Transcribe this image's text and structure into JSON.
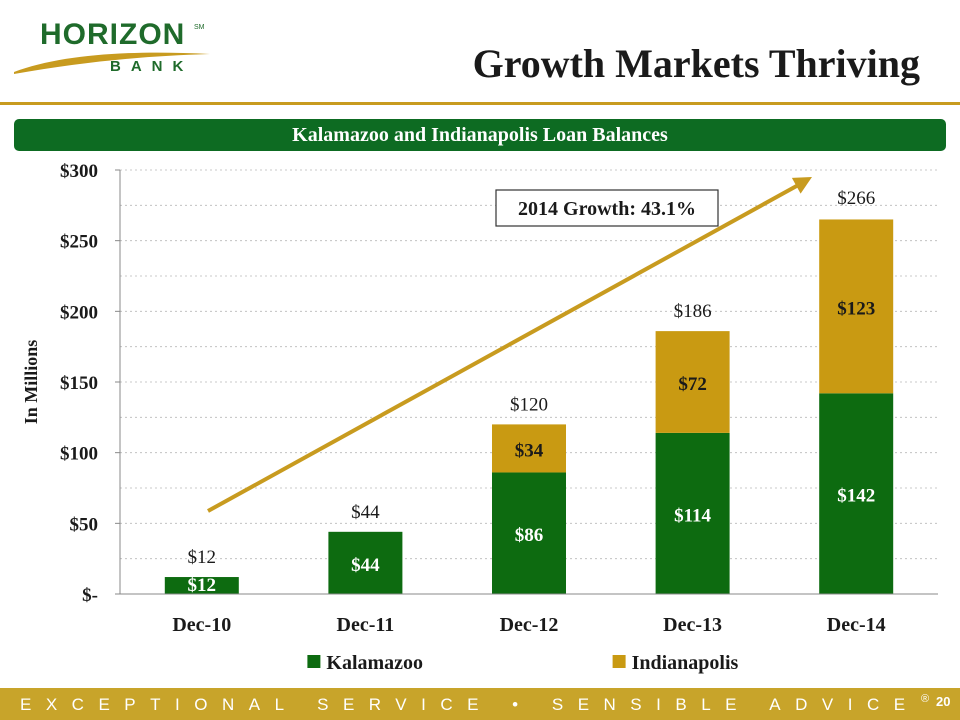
{
  "logo": {
    "name": "HORIZON",
    "sub": "BANK",
    "mark": "SM"
  },
  "slide": {
    "title": "Growth Markets Thriving",
    "banner": "Kalamazoo and Indianapolis Loan Balances"
  },
  "footer": {
    "tagline": "EXCEPTIONAL SERVICE • SENSIBLE ADVICE",
    "registered": "®",
    "page_number": "20"
  },
  "chart_data": {
    "type": "bar",
    "stacked": true,
    "categories": [
      "Dec-10",
      "Dec-11",
      "Dec-12",
      "Dec-13",
      "Dec-14"
    ],
    "series": [
      {
        "name": "Kalamazoo",
        "values": [
          12,
          44,
          86,
          114,
          142
        ],
        "color": "#0d6b10",
        "labels": [
          "$12",
          "$44",
          "$86",
          "$114",
          "$142"
        ]
      },
      {
        "name": "Indianapolis",
        "values": [
          0,
          0,
          34,
          72,
          123
        ],
        "color": "#c99a12",
        "labels": [
          "",
          "",
          "$34",
          "$72",
          "$123"
        ]
      }
    ],
    "totals": [
      12,
      44,
      120,
      186,
      266
    ],
    "total_labels": [
      "$12",
      "$44",
      "$120",
      "$186",
      "$266"
    ],
    "ylabel": "In Millions",
    "ylim": [
      0,
      300
    ],
    "yticks": [
      0,
      50,
      100,
      150,
      200,
      250,
      300
    ],
    "ytick_labels": [
      "$-",
      "$50",
      "$100",
      "$150",
      "$200",
      "$250",
      "$300"
    ],
    "grid": true,
    "legend_position": "bottom",
    "annotation": {
      "text": "2014 Growth: 43.1%"
    },
    "trend_arrow_color": "#c89b1f"
  }
}
